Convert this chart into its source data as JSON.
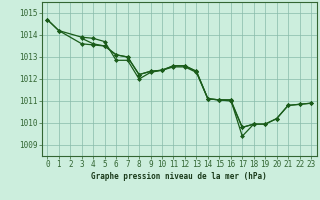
{
  "title": "Graphe pression niveau de la mer (hPa)",
  "background_color": "#cceedd",
  "grid_color": "#88bbaa",
  "line_color": "#1a5c1a",
  "marker_color": "#1a5c1a",
  "xlim": [
    -0.5,
    23.5
  ],
  "ylim": [
    1008.5,
    1015.5
  ],
  "yticks": [
    1009,
    1010,
    1011,
    1012,
    1013,
    1014,
    1015
  ],
  "xticks": [
    0,
    1,
    2,
    3,
    4,
    5,
    6,
    7,
    8,
    9,
    10,
    11,
    12,
    13,
    14,
    15,
    16,
    17,
    18,
    19,
    20,
    21,
    22,
    23
  ],
  "series": [
    {
      "x": [
        0,
        1,
        3,
        4,
        5,
        6,
        7,
        8,
        9,
        10,
        11,
        12,
        13,
        14,
        15,
        16,
        17,
        18,
        19,
        20,
        21,
        22,
        23
      ],
      "y": [
        1014.7,
        1014.2,
        1013.6,
        1013.55,
        1013.5,
        1013.1,
        1013.0,
        1012.2,
        1012.35,
        1012.4,
        1012.6,
        1012.6,
        1012.35,
        1011.1,
        1011.05,
        1011.05,
        1009.8,
        1009.95,
        1009.95,
        1010.2,
        1010.8,
        1010.85,
        1010.9
      ]
    },
    {
      "x": [
        0,
        1,
        3,
        4,
        5,
        6,
        7,
        8,
        9,
        10,
        11,
        12,
        13,
        14,
        15,
        16,
        17,
        18
      ],
      "y": [
        1014.7,
        1014.2,
        1013.9,
        1013.85,
        1013.7,
        1012.85,
        1012.85,
        1012.0,
        1012.3,
        1012.4,
        1012.55,
        1012.55,
        1012.3,
        1011.1,
        1011.05,
        1011.05,
        1009.4,
        1009.95
      ]
    },
    {
      "x": [
        3,
        4,
        5,
        6,
        7,
        8,
        9,
        10,
        11,
        12,
        13,
        14,
        15,
        16,
        17,
        18,
        19,
        20,
        21,
        22,
        23
      ],
      "y": [
        1013.85,
        1013.6,
        1013.5,
        1013.1,
        1013.0,
        1012.2,
        1012.35,
        1012.4,
        1012.6,
        1012.6,
        1012.35,
        1011.1,
        1011.05,
        1011.0,
        1009.8,
        1009.95,
        1009.95,
        1010.2,
        1010.8,
        1010.85,
        1010.9
      ]
    }
  ]
}
